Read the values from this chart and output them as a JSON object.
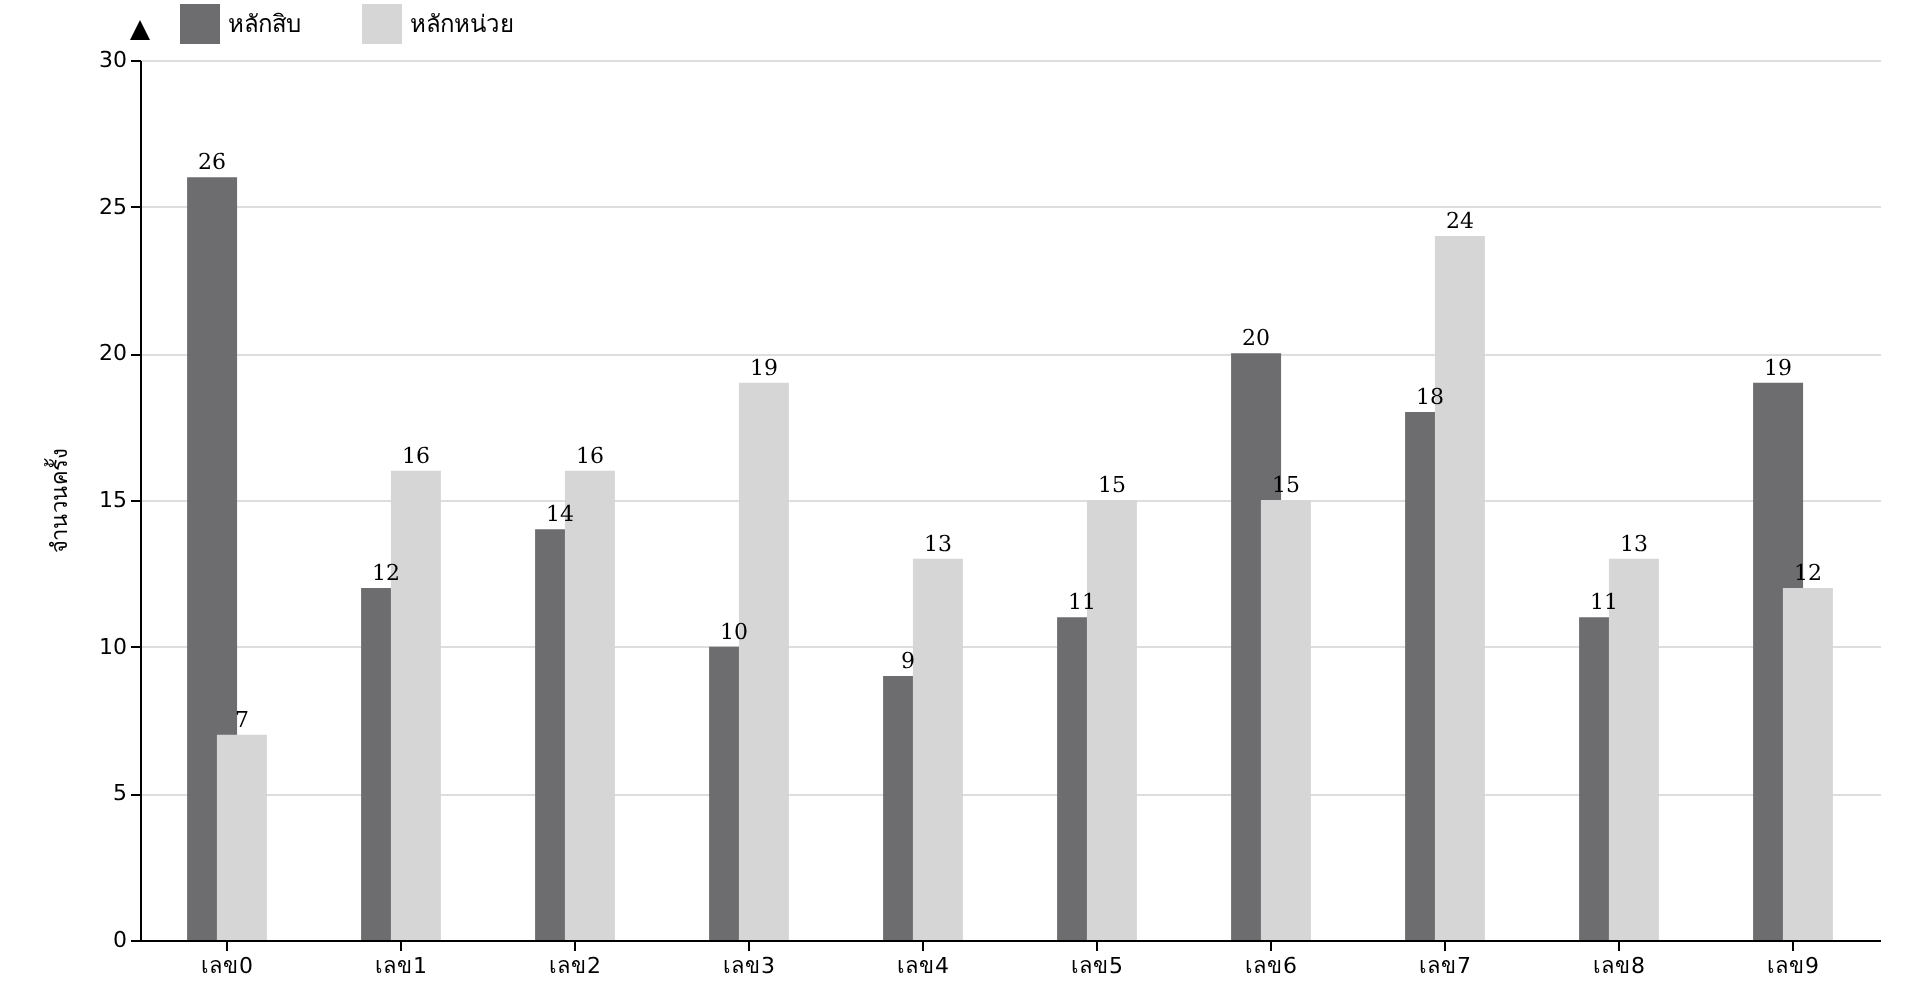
{
  "chart_data": {
    "type": "bar",
    "ylabel": "จำนวนครั้ง",
    "categories": [
      "เลข0",
      "เลข1",
      "เลข2",
      "เลข3",
      "เลข4",
      "เลข5",
      "เลข6",
      "เลข7",
      "เลข8",
      "เลข9"
    ],
    "series": [
      {
        "name": "หลักสิบ",
        "color": "#6d6d6f",
        "values": [
          26,
          12,
          14,
          10,
          9,
          11,
          20,
          18,
          11,
          19
        ]
      },
      {
        "name": "หลักหน่วย",
        "color": "#d6d6d6",
        "values": [
          7,
          16,
          16,
          19,
          13,
          15,
          15,
          24,
          13,
          12
        ]
      }
    ],
    "ylim": [
      0,
      30
    ],
    "yticks": [
      0,
      5,
      10,
      15,
      20,
      25,
      30
    ],
    "grid": "y",
    "legend": "top left",
    "data_labels": true
  }
}
